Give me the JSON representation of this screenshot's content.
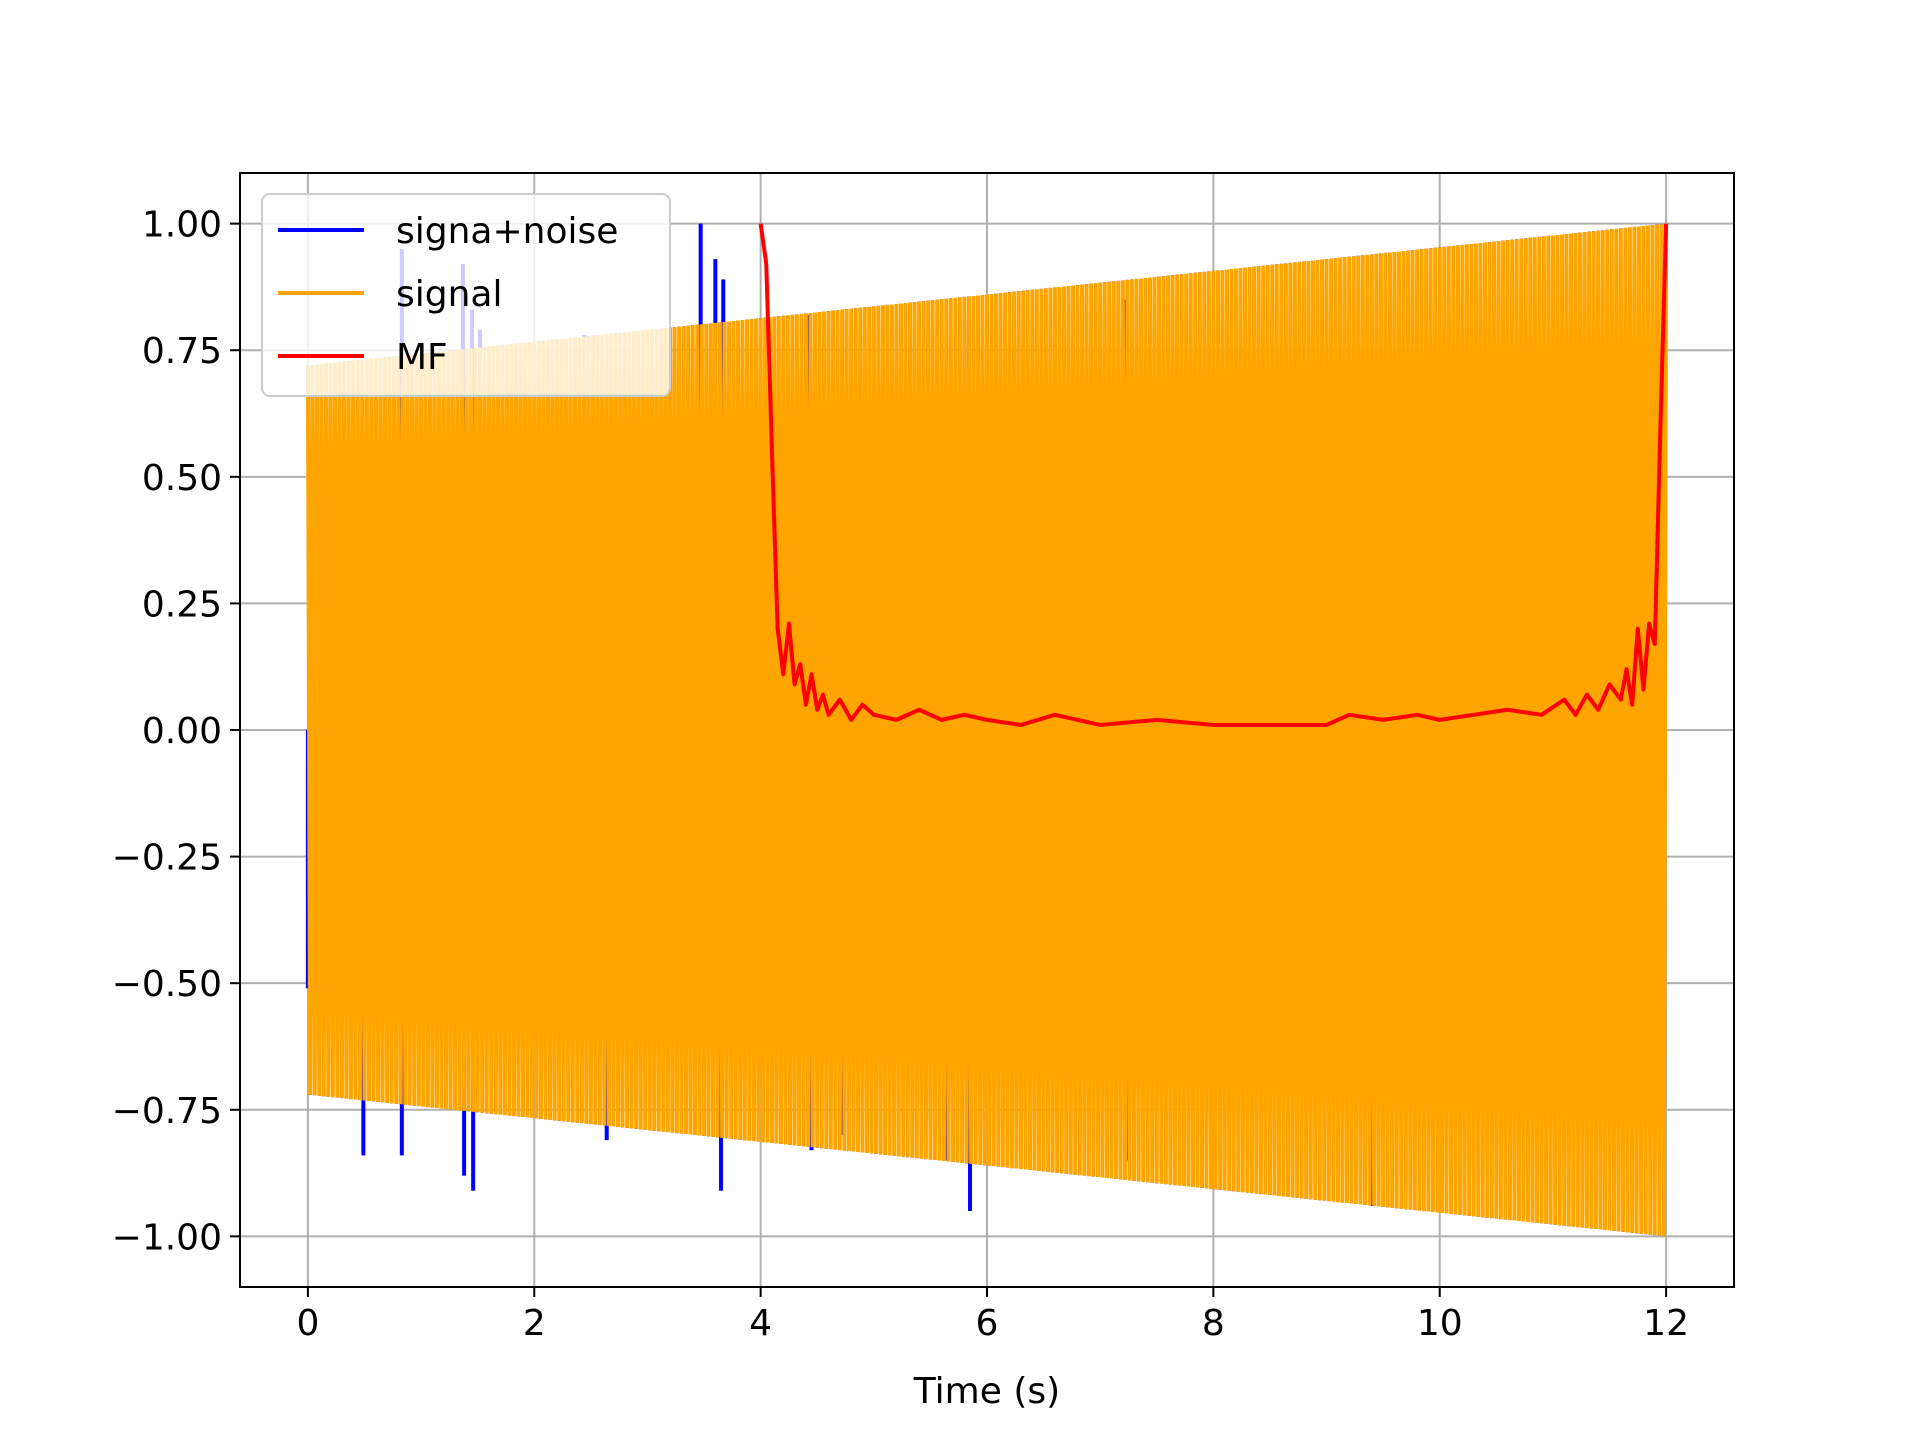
{
  "chart_data": {
    "type": "line",
    "title": "",
    "xlabel": "Time (s)",
    "ylabel": "",
    "xlim": [
      -0.6,
      12.6
    ],
    "ylim": [
      -1.1,
      1.1
    ],
    "grid": true,
    "legend_position": "top-left",
    "x_ticks": [
      0,
      2,
      4,
      6,
      8,
      10,
      12
    ],
    "x_tick_labels": [
      "0",
      "2",
      "4",
      "6",
      "8",
      "10",
      "12"
    ],
    "y_ticks": [
      1.0,
      0.75,
      0.5,
      0.25,
      0.0,
      -0.25,
      -0.5,
      -0.75,
      -1.0
    ],
    "y_tick_labels": [
      "1.00",
      "0.75",
      "0.50",
      "0.25",
      "0.00",
      "−0.25",
      "−0.50",
      "−0.75",
      "−1.00"
    ],
    "series": [
      {
        "name": "signa+noise",
        "color": "#0000ff",
        "kind": "oscillating signal with noise spikes",
        "envelope_x": [
          0,
          12
        ],
        "envelope_upper": [
          0.72,
          1.0
        ],
        "envelope_lower": [
          -0.72,
          -1.0
        ],
        "spikes": [
          {
            "x": 0.0,
            "y": -0.51
          },
          {
            "x": 0.49,
            "y": -0.84
          },
          {
            "x": 0.83,
            "y": 0.95
          },
          {
            "x": 0.83,
            "y": -0.84
          },
          {
            "x": 1.37,
            "y": 0.92
          },
          {
            "x": 1.38,
            "y": -0.88
          },
          {
            "x": 1.45,
            "y": 0.83
          },
          {
            "x": 1.46,
            "y": -0.91
          },
          {
            "x": 1.52,
            "y": 0.79
          },
          {
            "x": 2.44,
            "y": 0.78
          },
          {
            "x": 2.64,
            "y": -0.81
          },
          {
            "x": 3.47,
            "y": 1.0
          },
          {
            "x": 3.6,
            "y": 0.93
          },
          {
            "x": 3.65,
            "y": -0.91
          },
          {
            "x": 3.67,
            "y": 0.89
          },
          {
            "x": 4.43,
            "y": 0.82
          },
          {
            "x": 4.45,
            "y": -0.83
          },
          {
            "x": 4.71,
            "y": -0.8
          },
          {
            "x": 5.63,
            "y": -0.85
          },
          {
            "x": 5.84,
            "y": 0.81
          },
          {
            "x": 5.85,
            "y": -0.95
          },
          {
            "x": 7.23,
            "y": 0.85
          },
          {
            "x": 7.25,
            "y": -0.85
          },
          {
            "x": 9.41,
            "y": -0.94
          }
        ]
      },
      {
        "name": "signal",
        "color": "#ffa500",
        "kind": "oscillating signal",
        "envelope_x": [
          0,
          12
        ],
        "envelope_upper": [
          0.72,
          1.0
        ],
        "envelope_lower": [
          -0.72,
          -1.0
        ]
      },
      {
        "name": "MF",
        "color": "#ff0000",
        "x": [
          4.0,
          4.05,
          4.1,
          4.15,
          4.2,
          4.25,
          4.3,
          4.35,
          4.4,
          4.45,
          4.5,
          4.55,
          4.6,
          4.7,
          4.8,
          4.9,
          5.0,
          5.2,
          5.4,
          5.6,
          5.8,
          6.0,
          6.3,
          6.6,
          7.0,
          7.5,
          8.0,
          8.5,
          9.0,
          9.2,
          9.5,
          9.8,
          10.0,
          10.3,
          10.6,
          10.9,
          11.1,
          11.2,
          11.3,
          11.4,
          11.5,
          11.6,
          11.65,
          11.7,
          11.75,
          11.8,
          11.85,
          11.9,
          11.95,
          12.0
        ],
        "y": [
          1.0,
          0.92,
          0.55,
          0.2,
          0.11,
          0.21,
          0.09,
          0.13,
          0.05,
          0.11,
          0.04,
          0.07,
          0.03,
          0.06,
          0.02,
          0.05,
          0.03,
          0.02,
          0.04,
          0.02,
          0.03,
          0.02,
          0.01,
          0.03,
          0.01,
          0.02,
          0.01,
          0.01,
          0.01,
          0.03,
          0.02,
          0.03,
          0.02,
          0.03,
          0.04,
          0.03,
          0.06,
          0.03,
          0.07,
          0.04,
          0.09,
          0.06,
          0.12,
          0.05,
          0.2,
          0.08,
          0.21,
          0.17,
          0.6,
          1.0
        ]
      }
    ]
  }
}
